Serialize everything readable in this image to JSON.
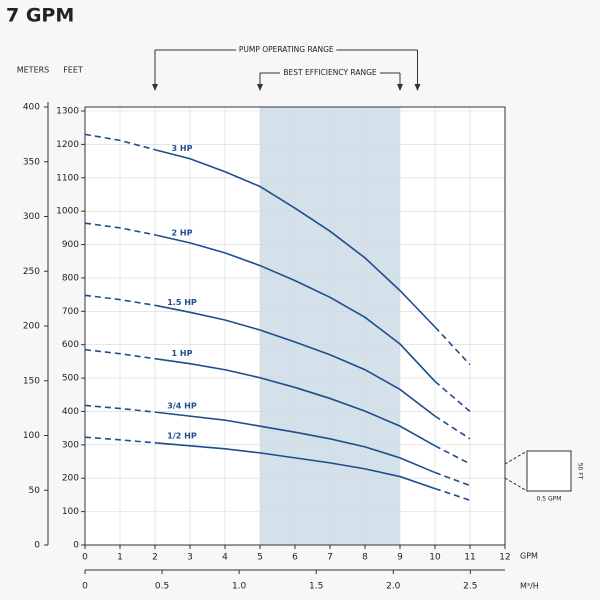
{
  "chart_data": {
    "type": "line",
    "title": "7 GPM",
    "x_label": "GPM",
    "x2_label": "M³/H",
    "y_label": "FEET",
    "y2_label": "METERS",
    "x": [
      0,
      1,
      2,
      3,
      4,
      5,
      6,
      7,
      8,
      9,
      10,
      11
    ],
    "xlim": [
      0,
      12
    ],
    "xticks": [
      0,
      1,
      2,
      3,
      4,
      5,
      6,
      7,
      8,
      9,
      10,
      11,
      12
    ],
    "x2lim": [
      0,
      2.725
    ],
    "x2ticks": [
      0,
      0.5,
      {
        "value": 1,
        "label": "1.0"
      },
      1.5,
      {
        "value": 2,
        "label": "2.0"
      },
      2.5
    ],
    "ylim": [
      0,
      1312
    ],
    "yticks": [
      0,
      100,
      200,
      300,
      400,
      500,
      600,
      700,
      800,
      900,
      1000,
      1100,
      1200,
      1300
    ],
    "y2lim": [
      0,
      400
    ],
    "y2ticks": [
      0,
      50,
      100,
      150,
      200,
      250,
      300,
      350,
      400
    ],
    "grid": true,
    "solid_range": [
      2,
      10
    ],
    "band": {
      "range": [
        5,
        9
      ],
      "color": "#d4e0ea"
    },
    "annotations": [
      {
        "text": "PUMP OPERATING RANGE",
        "range": [
          2,
          9.5
        ]
      },
      {
        "text": "BEST EFFICIENCY RANGE",
        "range": [
          5,
          9
        ]
      }
    ],
    "inset": {
      "width_label": "0.5 GPM",
      "height_label": "50 FT"
    },
    "series": [
      {
        "name": "3 HP",
        "color": "#1f4e8c",
        "values": [
          1230,
          1212,
          1184,
          1157,
          1118,
          1074,
          1009,
          940,
          860,
          762,
          653,
          540
        ]
      },
      {
        "name": "2 HP",
        "color": "#1f4e8c",
        "values": [
          964,
          950,
          929,
          905,
          875,
          837,
          792,
          742,
          682,
          602,
          490,
          400
        ]
      },
      {
        "name": "1.5 HP",
        "color": "#1f4e8c",
        "values": [
          748,
          735,
          718,
          697,
          674,
          644,
          608,
          570,
          525,
          466,
          386,
          318
        ]
      },
      {
        "name": "1 HP",
        "color": "#1f4e8c",
        "values": [
          585,
          573,
          558,
          543,
          525,
          501,
          472,
          439,
          401,
          356,
          297,
          243
        ]
      },
      {
        "name": "3/4 HP",
        "color": "#1f4e8c",
        "values": [
          418,
          409,
          398,
          386,
          374,
          356,
          338,
          318,
          294,
          261,
          217,
          178
        ]
      },
      {
        "name": "1/2 HP",
        "color": "#1f4e8c",
        "values": [
          323,
          315,
          306,
          297,
          288,
          276,
          261,
          246,
          228,
          205,
          169,
          134
        ]
      }
    ]
  }
}
